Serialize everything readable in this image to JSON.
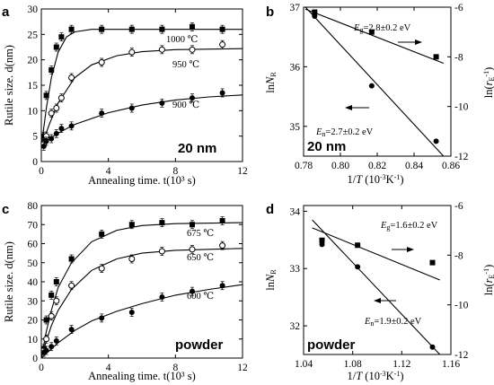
{
  "chart_data": [
    {
      "panel": "a",
      "type": "scatter",
      "tag": "20 nm",
      "xlabel": "Annealing time. t(10³ s)",
      "ylabel": "Rutile size. d(nm)",
      "xlim": [
        0,
        12
      ],
      "ylim": [
        0,
        30
      ],
      "xticks": [
        0,
        4,
        8,
        12
      ],
      "yticks": [
        0,
        5,
        10,
        15,
        20,
        25,
        30
      ],
      "series": [
        {
          "name": "1000 ℃",
          "marker": "filled-square",
          "x": [
            0.15,
            0.3,
            0.6,
            0.9,
            1.2,
            1.8,
            3.6,
            5.4,
            7.2,
            9.0,
            10.8
          ],
          "y": [
            5.0,
            13.0,
            18.0,
            22.5,
            24.5,
            26.0,
            26.0,
            26.0,
            26.0,
            26.5,
            26.0
          ],
          "fit": [
            [
              0,
              3
            ],
            [
              0.3,
              10.5
            ],
            [
              0.6,
              16.5
            ],
            [
              1.0,
              21.5
            ],
            [
              1.5,
              24.5
            ],
            [
              2.0,
              25.5
            ],
            [
              3.0,
              26.0
            ],
            [
              12,
              26.0
            ]
          ]
        },
        {
          "name": "950 ℃",
          "marker": "open-circle",
          "x": [
            0.15,
            0.3,
            0.6,
            0.9,
            1.2,
            1.8,
            3.6,
            5.4,
            7.2,
            9.0,
            10.8
          ],
          "y": [
            3.5,
            5.0,
            9.5,
            10.5,
            12.5,
            16.5,
            19.5,
            21.5,
            22.0,
            22.0,
            23.0
          ],
          "fit": [
            [
              0,
              3
            ],
            [
              0.5,
              7.5
            ],
            [
              1.0,
              11.5
            ],
            [
              2.0,
              16.5
            ],
            [
              3.0,
              19.0
            ],
            [
              4.5,
              20.8
            ],
            [
              6.0,
              21.6
            ],
            [
              8.0,
              22.0
            ],
            [
              12,
              22.2
            ]
          ]
        },
        {
          "name": "900 ℃",
          "marker": "filled-circle",
          "x": [
            0.15,
            0.3,
            0.6,
            0.9,
            1.2,
            1.8,
            3.6,
            5.4,
            7.2,
            9.0,
            10.8
          ],
          "y": [
            3.0,
            4.0,
            4.5,
            5.5,
            6.5,
            7.0,
            9.5,
            10.5,
            11.5,
            12.5,
            13.5
          ],
          "fit": [
            [
              0,
              3
            ],
            [
              0.5,
              4.5
            ],
            [
              1.0,
              5.6
            ],
            [
              2.0,
              7.3
            ],
            [
              4.0,
              9.6
            ],
            [
              6.0,
              11.1
            ],
            [
              8.0,
              12.1
            ],
            [
              10.0,
              12.7
            ],
            [
              12,
              13.1
            ]
          ]
        }
      ]
    },
    {
      "panel": "b",
      "type": "scatter",
      "tag": "20 nm",
      "xlabel": "1/T (10⁻³K⁻¹)",
      "ylabel_left": "lnN_R",
      "ylabel_right": "ln(r_E⁻¹)",
      "xlim": [
        0.78,
        0.86
      ],
      "ylim_left": [
        34.5,
        37
      ],
      "ylim_right": [
        -12,
        -6
      ],
      "xticks": [
        0.78,
        0.8,
        0.82,
        0.84,
        0.86
      ],
      "yticks_left": [
        35,
        36,
        37
      ],
      "yticks_right": [
        -6,
        -8,
        -10,
        -12
      ],
      "annotations": [
        "E_g=2.8±0.2 eV",
        "E_n=2.7±0.2 eV"
      ],
      "series": [
        {
          "name": "ln(r_E⁻¹)",
          "axis": "right",
          "marker": "filled-square",
          "x": [
            0.786,
            0.817,
            0.852
          ],
          "y": [
            -6.2,
            -7.0,
            -8.0
          ],
          "fit": [
            [
              0.781,
              -6.08
            ],
            [
              0.856,
              -8.26
            ]
          ]
        },
        {
          "name": "lnN_R",
          "axis": "left",
          "marker": "filled-circle",
          "x": [
            0.786,
            0.817,
            0.852
          ],
          "y": [
            36.85,
            35.68,
            34.75
          ],
          "fit": [
            [
              0.781,
              37.0
            ],
            [
              0.856,
              34.5
            ]
          ]
        }
      ]
    },
    {
      "panel": "c",
      "type": "scatter",
      "tag": "powder",
      "xlabel": "Annealing time. t(10³ s)",
      "ylabel": "Rutile size. d(nm)",
      "xlim": [
        0,
        12
      ],
      "ylim": [
        0,
        80
      ],
      "xticks": [
        0,
        4,
        8,
        12
      ],
      "yticks": [
        0,
        10,
        20,
        30,
        40,
        50,
        60,
        70,
        80
      ],
      "series": [
        {
          "name": "675 ℃",
          "marker": "filled-square",
          "x": [
            0.15,
            0.3,
            0.6,
            0.9,
            1.8,
            3.6,
            5.4,
            7.2,
            9.0,
            10.8
          ],
          "y": [
            5,
            20,
            33,
            40,
            52,
            65,
            70,
            71,
            70,
            72
          ],
          "fit": [
            [
              0,
              0
            ],
            [
              0.3,
              14
            ],
            [
              0.6,
              25
            ],
            [
              1.0,
              37
            ],
            [
              1.8,
              50
            ],
            [
              3.0,
              61
            ],
            [
              4.5,
              67
            ],
            [
              6.0,
              69.5
            ],
            [
              8.0,
              70.5
            ],
            [
              12,
              71
            ]
          ]
        },
        {
          "name": "650 ℃",
          "marker": "open-circle",
          "x": [
            0.15,
            0.3,
            0.6,
            0.9,
            1.8,
            3.6,
            5.4,
            7.2,
            9.0,
            10.8
          ],
          "y": [
            4,
            10,
            22,
            30,
            38,
            47,
            52,
            56,
            57,
            59
          ],
          "fit": [
            [
              0,
              0
            ],
            [
              0.3,
              9
            ],
            [
              0.6,
              17
            ],
            [
              1.0,
              25
            ],
            [
              1.8,
              36
            ],
            [
              3.0,
              46
            ],
            [
              4.5,
              52
            ],
            [
              6.0,
              55
            ],
            [
              8.0,
              56.5
            ],
            [
              12,
              57.5
            ]
          ]
        },
        {
          "name": "600 ℃",
          "marker": "filled-circle",
          "x": [
            0.15,
            0.3,
            0.6,
            0.9,
            1.8,
            3.6,
            5.4,
            7.2,
            9.0,
            10.8
          ],
          "y": [
            3,
            4,
            6,
            9,
            15,
            21,
            24,
            32,
            35,
            38
          ],
          "fit": [
            [
              0,
              0
            ],
            [
              0.5,
              4
            ],
            [
              1.0,
              8
            ],
            [
              2.0,
              14.5
            ],
            [
              3.0,
              19.5
            ],
            [
              4.5,
              24.5
            ],
            [
              6.0,
              28.5
            ],
            [
              8.0,
              33
            ],
            [
              10.0,
              36
            ],
            [
              12,
              38.5
            ]
          ]
        }
      ]
    },
    {
      "panel": "d",
      "type": "scatter",
      "tag": "powder",
      "xlabel": "1/T (10⁻³K⁻¹)",
      "ylabel_left": "lnN_R",
      "ylabel_right": "ln(r_E⁻¹)",
      "xlim": [
        1.04,
        1.16
      ],
      "ylim_left": [
        31.5,
        34.1
      ],
      "ylim_right": [
        -12,
        -6
      ],
      "xticks": [
        1.04,
        1.08,
        1.12,
        1.16
      ],
      "yticks_left": [
        32,
        33,
        34
      ],
      "yticks_right": [
        -6,
        -8,
        -10,
        -12
      ],
      "annotations": [
        "E_g=1.6±0.2 eV",
        "E_n=1.9±0.2 eV"
      ],
      "series": [
        {
          "name": "ln(r_E⁻¹)",
          "axis": "right",
          "marker": "filled-square",
          "x": [
            1.055,
            1.084,
            1.145
          ],
          "y": [
            -7.4,
            -7.6,
            -8.3
          ],
          "fit": [
            [
              1.047,
              -6.9
            ],
            [
              1.151,
              -9.0
            ]
          ]
        },
        {
          "name": "lnN_R",
          "axis": "left",
          "marker": "filled-circle",
          "x": [
            1.055,
            1.084,
            1.145
          ],
          "y": [
            33.42,
            33.03,
            31.63
          ],
          "fit": [
            [
              1.047,
              33.85
            ],
            [
              1.151,
              31.5
            ]
          ]
        }
      ]
    }
  ]
}
